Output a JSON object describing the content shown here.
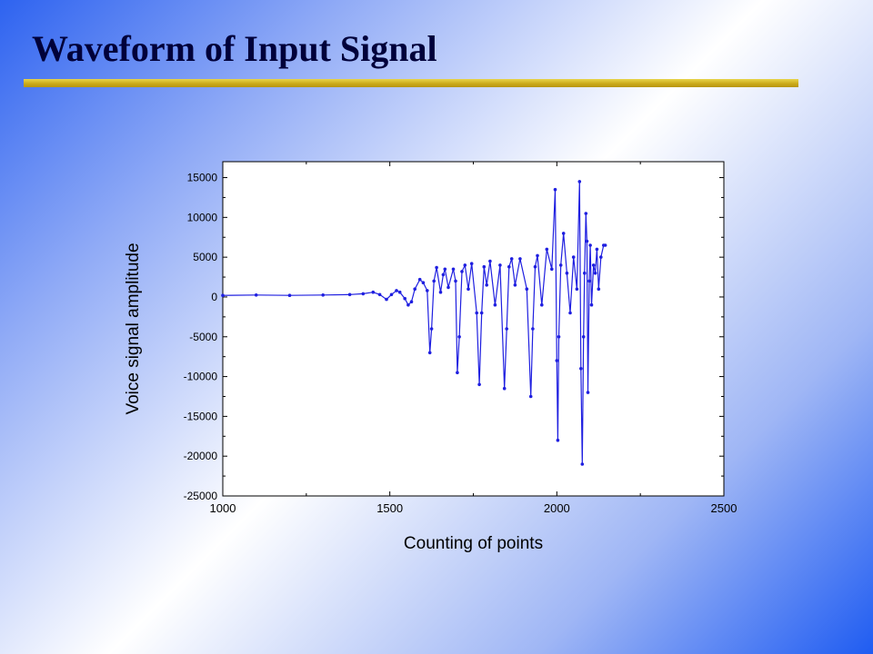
{
  "slide": {
    "title": "Waveform of Input Signal",
    "title_color": "#00003a",
    "rule_color": "#d4b42a"
  },
  "chart_data": {
    "type": "line",
    "xlabel": "Counting of points",
    "ylabel": "Voice signal amplitude",
    "xlim": [
      1000,
      2500
    ],
    "ylim": [
      -25000,
      17000
    ],
    "xticks": [
      1000,
      1500,
      2000,
      2500
    ],
    "yticks": [
      15000,
      10000,
      5000,
      0,
      -5000,
      -10000,
      -15000,
      -20000,
      -25000
    ],
    "grid": false,
    "marker": "dot",
    "series_color": "#1f1fe0",
    "series": [
      {
        "x": [
          1000,
          1100,
          1200,
          1300,
          1380,
          1420,
          1450,
          1470,
          1490,
          1505,
          1520,
          1530,
          1545,
          1555,
          1565,
          1575,
          1590,
          1600,
          1612,
          1620,
          1625,
          1632,
          1640,
          1652,
          1660,
          1665,
          1675,
          1690,
          1697,
          1702,
          1708,
          1716,
          1725,
          1735,
          1745,
          1760,
          1768,
          1775,
          1782,
          1790,
          1800,
          1815,
          1830,
          1843,
          1850,
          1857,
          1865,
          1875,
          1890,
          1910,
          1922,
          1928,
          1935,
          1942,
          1955,
          1970,
          1985,
          1995,
          2000,
          2003,
          2006,
          2012,
          2020,
          2030,
          2040,
          2050,
          2060,
          2068,
          2072,
          2076,
          2080,
          2083,
          2087,
          2090,
          2093,
          2097,
          2100,
          2104,
          2110,
          2115,
          2120,
          2125,
          2132,
          2140,
          2145
        ],
        "y": [
          200,
          250,
          200,
          250,
          300,
          400,
          600,
          300,
          -300,
          300,
          800,
          600,
          -200,
          -1000,
          -600,
          1000,
          2200,
          1800,
          800,
          -7000,
          -4000,
          2000,
          3700,
          600,
          2800,
          3500,
          1200,
          3500,
          2000,
          -9500,
          -5000,
          3200,
          4000,
          1000,
          4200,
          -2000,
          -11000,
          -2000,
          3800,
          1500,
          4500,
          -1000,
          4000,
          -11500,
          -4000,
          3800,
          4800,
          1500,
          4800,
          1000,
          -12500,
          -4000,
          3800,
          5200,
          -1000,
          6000,
          3500,
          13500,
          -8000,
          -18000,
          -5000,
          4000,
          8000,
          3000,
          -2000,
          5000,
          1000,
          14500,
          -9000,
          -21000,
          -5000,
          3000,
          10500,
          7000,
          -12000,
          2000,
          6500,
          -1000,
          4000,
          3000,
          6000,
          1000,
          5000,
          6500,
          6500
        ]
      }
    ]
  }
}
